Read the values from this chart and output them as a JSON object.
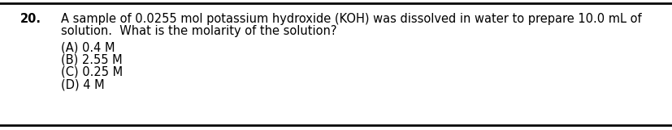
{
  "background_color": "#ffffff",
  "line_color": "#000000",
  "question_number": "20.",
  "line1": "A sample of 0.0255 mol potassium hydroxide (KOH) was dissolved in water to prepare 10.0 mL of",
  "line2": "solution.  What is the molarity of the solution?",
  "options": [
    "(A) 0.4 M",
    "(B) 2.55 M",
    "(C) 0.25 M",
    "(D) 4 M"
  ],
  "font_size": 10.5,
  "font_size_bold": 10.5,
  "font_family": "DejaVu Sans",
  "text_color": "#000000",
  "fig_width": 8.28,
  "fig_height": 1.61,
  "dpi": 100
}
